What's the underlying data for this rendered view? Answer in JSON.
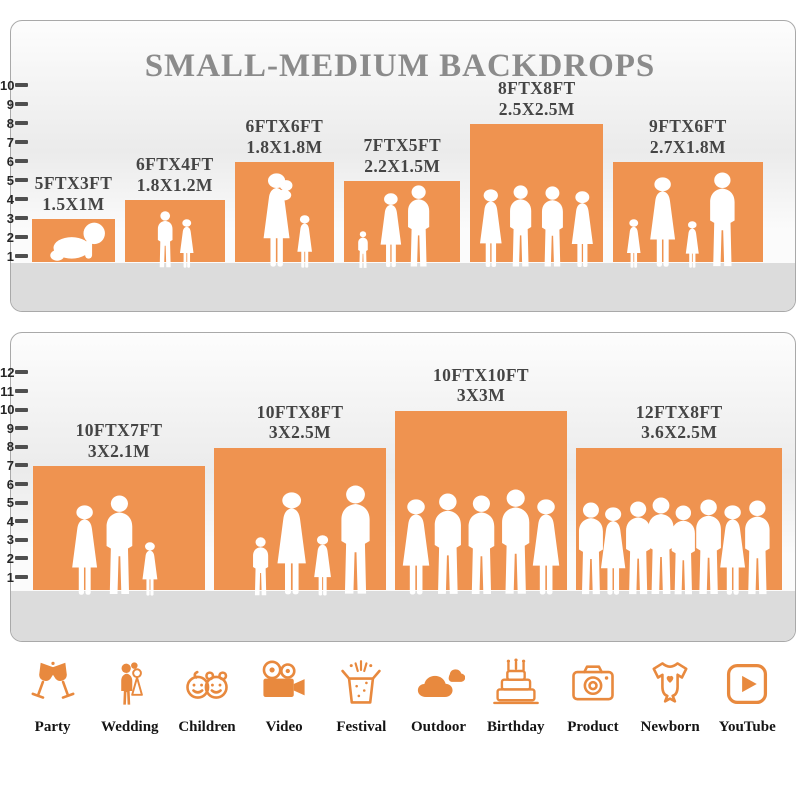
{
  "title": "SMALL-MEDIUM BACKDROPS",
  "colors": {
    "bar": "#EF9350",
    "icon": "#E8893E",
    "label": "#454545",
    "title": "#8B8B8B",
    "floor": "#DCDCDC",
    "tick": "#4F4F4F",
    "panel_border": "#A9A9A9",
    "silhouette": "#FFFFFF"
  },
  "chart_data": [
    {
      "type": "bar",
      "panel": "top",
      "title": "SMALL-MEDIUM BACKDROPS",
      "ylim": [
        0,
        10
      ],
      "axis_ticks": [
        1,
        2,
        3,
        4,
        5,
        6,
        7,
        8,
        9,
        10
      ],
      "units": "feet",
      "bars": [
        {
          "label_ft": "5FTX3FT",
          "label_m": "1.5X1M",
          "width_ft": 5,
          "height_ft": 3,
          "figures": [
            "baby"
          ]
        },
        {
          "label_ft": "6FTX4FT",
          "label_m": "1.8X1.2M",
          "width_ft": 6,
          "height_ft": 4,
          "figures": [
            "boy",
            "girl"
          ]
        },
        {
          "label_ft": "6FTX6FT",
          "label_m": "1.8X1.8M",
          "width_ft": 6,
          "height_ft": 6,
          "figures": [
            "mother",
            "girl"
          ]
        },
        {
          "label_ft": "7FTX5FT",
          "label_m": "2.2X1.5M",
          "width_ft": 7,
          "height_ft": 5,
          "figures": [
            "toddler",
            "woman",
            "man"
          ]
        },
        {
          "label_ft": "8FTX8FT",
          "label_m": "2.5X2.5M",
          "width_ft": 8,
          "height_ft": 8,
          "figures": [
            "woman",
            "man",
            "man",
            "woman"
          ]
        },
        {
          "label_ft": "9FTX6FT",
          "label_m": "2.7X1.8M",
          "width_ft": 9,
          "height_ft": 6,
          "figures": [
            "girl",
            "woman",
            "girl",
            "man"
          ]
        }
      ]
    },
    {
      "type": "bar",
      "panel": "bottom",
      "ylim": [
        0,
        12
      ],
      "axis_ticks": [
        1,
        2,
        3,
        4,
        5,
        6,
        7,
        8,
        9,
        10,
        11,
        12
      ],
      "units": "feet",
      "bars": [
        {
          "label_ft": "10FTX7FT",
          "label_m": "3X2.1M",
          "width_ft": 10,
          "height_ft": 7,
          "figures": [
            "woman",
            "man",
            "girl"
          ]
        },
        {
          "label_ft": "10FTX8FT",
          "label_m": "3X2.5M",
          "width_ft": 10,
          "height_ft": 8,
          "figures": [
            "toddler",
            "woman",
            "girl",
            "man"
          ]
        },
        {
          "label_ft": "10FTX10FT",
          "label_m": "3X3M",
          "width_ft": 10,
          "height_ft": 10,
          "figures": [
            "woman",
            "man",
            "man",
            "man",
            "woman"
          ]
        },
        {
          "label_ft": "12FTX8FT",
          "label_m": "3.6X2.5M",
          "width_ft": 12,
          "height_ft": 8,
          "figures": [
            "man",
            "woman",
            "man",
            "man",
            "man",
            "man",
            "woman",
            "man"
          ]
        }
      ]
    }
  ],
  "categories": [
    {
      "icon": "party-icon",
      "label": "Party"
    },
    {
      "icon": "wedding-icon",
      "label": "Wedding"
    },
    {
      "icon": "children-icon",
      "label": "Children"
    },
    {
      "icon": "video-icon",
      "label": "Video"
    },
    {
      "icon": "festival-icon",
      "label": "Festival"
    },
    {
      "icon": "outdoor-icon",
      "label": "Outdoor"
    },
    {
      "icon": "birthday-icon",
      "label": "Birthday"
    },
    {
      "icon": "product-icon",
      "label": "Product"
    },
    {
      "icon": "newborn-icon",
      "label": "Newborn"
    },
    {
      "icon": "youtube-icon",
      "label": "YouTube"
    }
  ]
}
